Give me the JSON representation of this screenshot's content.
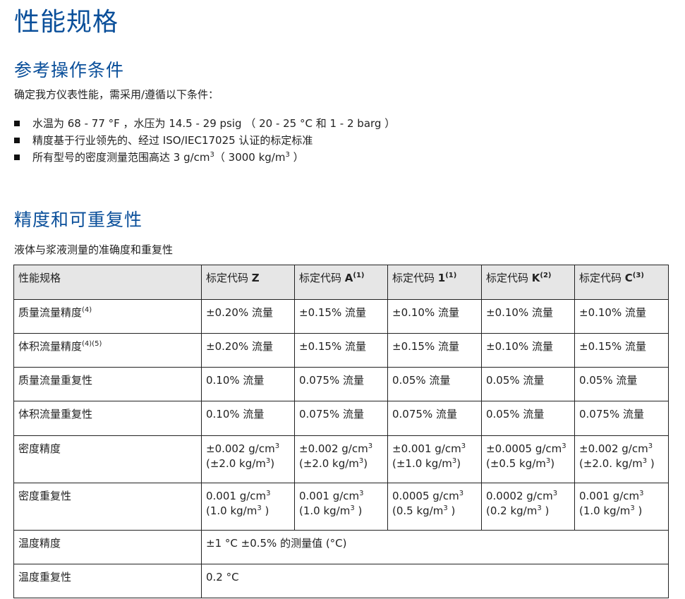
{
  "title": "性能规格",
  "section1": {
    "heading": "参考操作条件",
    "intro": "确定我方仪表性能，需采用/遵循以下条件：",
    "bullets": [
      [
        {
          "t": "水温为 68 - 77 °F ，水压为 14.5 - 29 psig （ 20 - 25 °C 和 1 - 2 barg ）"
        }
      ],
      [
        {
          "t": "精度基于行业领先的、经过 ISO/IEC17025 认证的标定标准"
        }
      ],
      [
        {
          "t": "所有型号的密度测量范围高达 3 g/cm"
        },
        {
          "t": "3",
          "sup": true
        },
        {
          "t": "（ 3000 kg/m"
        },
        {
          "t": "3",
          "sup": true
        },
        {
          "t": " ）"
        }
      ]
    ],
    "bullet_icon": "square-bullet-icon"
  },
  "section2": {
    "heading": "精度和可重复性",
    "caption": "液体与浆液测量的准确度和重复性",
    "table": {
      "header": [
        {
          "label": "性能规格",
          "code": "",
          "note": ""
        },
        {
          "label": "标定代码 ",
          "code": "Z",
          "note": ""
        },
        {
          "label": "标定代码 ",
          "code": "A",
          "note": "(1)"
        },
        {
          "label": "标定代码 ",
          "code": "1",
          "note": "(1)"
        },
        {
          "label": "标定代码 ",
          "code": "K",
          "note": "(2)"
        },
        {
          "label": "标定代码 ",
          "code": "C",
          "note": "(3)"
        }
      ],
      "rows": [
        {
          "label": [
            {
              "t": "质量流量精度"
            },
            {
              "t": "(4)",
              "sup": true
            }
          ],
          "cells": [
            [
              [
                {
                  "t": "±0.20% 流量"
                }
              ]
            ],
            [
              [
                {
                  "t": "±0.15% 流量"
                }
              ]
            ],
            [
              [
                {
                  "t": "±0.10% 流量"
                }
              ]
            ],
            [
              [
                {
                  "t": "±0.10% 流量"
                }
              ]
            ],
            [
              [
                {
                  "t": "±0.10% 流量"
                }
              ]
            ]
          ]
        },
        {
          "label": [
            {
              "t": "体积流量精度"
            },
            {
              "t": "(4)(5)",
              "sup": true
            }
          ],
          "cells": [
            [
              [
                {
                  "t": "±0.20% 流量"
                }
              ]
            ],
            [
              [
                {
                  "t": "±0.15% 流量"
                }
              ]
            ],
            [
              [
                {
                  "t": "±0.15% 流量"
                }
              ]
            ],
            [
              [
                {
                  "t": "±0.10% 流量"
                }
              ]
            ],
            [
              [
                {
                  "t": "±0.15% 流量"
                }
              ]
            ]
          ]
        },
        {
          "label": [
            {
              "t": "质量流量重复性"
            }
          ],
          "cells": [
            [
              [
                {
                  "t": "0.10% 流量"
                }
              ]
            ],
            [
              [
                {
                  "t": "0.075% 流量"
                }
              ]
            ],
            [
              [
                {
                  "t": "0.05% 流量"
                }
              ]
            ],
            [
              [
                {
                  "t": "0.05% 流量"
                }
              ]
            ],
            [
              [
                {
                  "t": "0.05% 流量"
                }
              ]
            ]
          ]
        },
        {
          "label": [
            {
              "t": "体积流量重复性"
            }
          ],
          "cells": [
            [
              [
                {
                  "t": "0.10% 流量"
                }
              ]
            ],
            [
              [
                {
                  "t": "0.075% 流量"
                }
              ]
            ],
            [
              [
                {
                  "t": "0.075% 流量"
                }
              ]
            ],
            [
              [
                {
                  "t": "0.05% 流量"
                }
              ]
            ],
            [
              [
                {
                  "t": "0.075% 流量"
                }
              ]
            ]
          ]
        },
        {
          "label": [
            {
              "t": "密度精度"
            }
          ],
          "cells": [
            [
              [
                {
                  "t": "±0.002 g/cm"
                },
                {
                  "t": "3",
                  "sup": true
                }
              ],
              [
                {
                  "t": "(±2.0 kg/m"
                },
                {
                  "t": "3",
                  "sup": true
                },
                {
                  "t": ")"
                }
              ]
            ],
            [
              [
                {
                  "t": "±0.002 g/cm"
                },
                {
                  "t": "3",
                  "sup": true
                }
              ],
              [
                {
                  "t": "(±2.0 kg/m"
                },
                {
                  "t": "3",
                  "sup": true
                },
                {
                  "t": ")"
                }
              ]
            ],
            [
              [
                {
                  "t": "±0.001 g/cm"
                },
                {
                  "t": "3",
                  "sup": true
                }
              ],
              [
                {
                  "t": "(±1.0 kg/m"
                },
                {
                  "t": "3",
                  "sup": true
                },
                {
                  "t": ")"
                }
              ]
            ],
            [
              [
                {
                  "t": "±0.0005 g/cm"
                },
                {
                  "t": "3",
                  "sup": true
                }
              ],
              [
                {
                  "t": "(±0.5 kg/m"
                },
                {
                  "t": "3",
                  "sup": true
                },
                {
                  "t": ")"
                }
              ]
            ],
            [
              [
                {
                  "t": "±0.002 g/cm"
                },
                {
                  "t": "3",
                  "sup": true
                }
              ],
              [
                {
                  "t": "(±2.0. kg/m"
                },
                {
                  "t": "3",
                  "sup": true
                },
                {
                  "t": " )"
                }
              ]
            ]
          ]
        },
        {
          "label": [
            {
              "t": "密度重复性"
            }
          ],
          "cells": [
            [
              [
                {
                  "t": "0.001 g/cm"
                },
                {
                  "t": "3",
                  "sup": true
                }
              ],
              [
                {
                  "t": "(1.0 kg/m"
                },
                {
                  "t": "3",
                  "sup": true
                },
                {
                  "t": " )"
                }
              ]
            ],
            [
              [
                {
                  "t": "0.001 g/cm"
                },
                {
                  "t": "3",
                  "sup": true
                }
              ],
              [
                {
                  "t": "(1.0 kg/m"
                },
                {
                  "t": "3",
                  "sup": true
                },
                {
                  "t": " )"
                }
              ]
            ],
            [
              [
                {
                  "t": "0.0005 g/cm"
                },
                {
                  "t": "3",
                  "sup": true
                }
              ],
              [
                {
                  "t": "(0.5 kg/m"
                },
                {
                  "t": "3",
                  "sup": true
                },
                {
                  "t": " )"
                }
              ]
            ],
            [
              [
                {
                  "t": "0.0002 g/cm"
                },
                {
                  "t": "3",
                  "sup": true
                }
              ],
              [
                {
                  "t": "(0.2 kg/m"
                },
                {
                  "t": "3",
                  "sup": true
                },
                {
                  "t": " )"
                }
              ]
            ],
            [
              [
                {
                  "t": "0.001 g/cm"
                },
                {
                  "t": "3",
                  "sup": true
                }
              ],
              [
                {
                  "t": "(1.0 kg/m"
                },
                {
                  "t": "3",
                  "sup": true
                },
                {
                  "t": " )"
                }
              ]
            ]
          ]
        },
        {
          "label": [
            {
              "t": "温度精度"
            }
          ],
          "span": [
            [
              {
                "t": "±1 °C ±0.5% 的测量值 (°C)"
              }
            ]
          ]
        },
        {
          "label": [
            {
              "t": "温度重复性"
            }
          ],
          "span": [
            [
              {
                "t": "0.2 °C"
              }
            ]
          ]
        }
      ]
    }
  }
}
